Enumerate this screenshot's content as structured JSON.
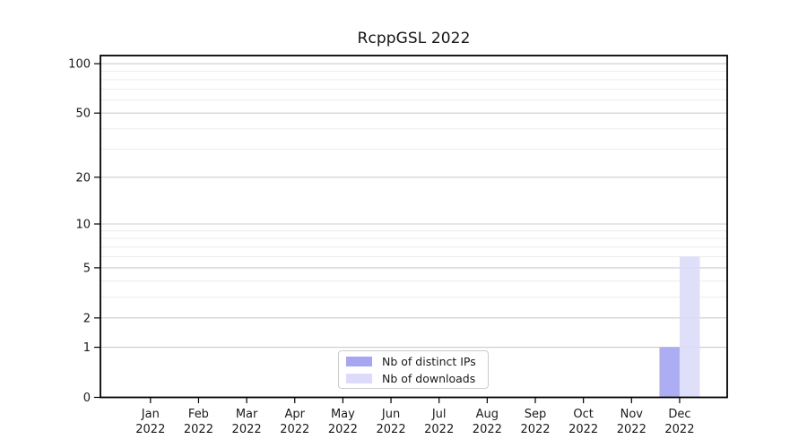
{
  "title": "RcppGSL 2022",
  "chart_data": {
    "type": "bar",
    "title": "RcppGSL 2022",
    "categories": [
      "Jan",
      "Feb",
      "Mar",
      "Apr",
      "May",
      "Jun",
      "Jul",
      "Aug",
      "Sep",
      "Oct",
      "Nov",
      "Dec"
    ],
    "year_label": "2022",
    "series": [
      {
        "name": "Nb of distinct IPs",
        "color": "#a6a6f2",
        "values": [
          0,
          0,
          0,
          0,
          0,
          0,
          0,
          0,
          0,
          0,
          0,
          1
        ]
      },
      {
        "name": "Nb of downloads",
        "color": "#dcdcfa",
        "values": [
          0,
          0,
          0,
          0,
          0,
          0,
          0,
          0,
          0,
          0,
          0,
          6
        ]
      }
    ],
    "y_scale": "log1p",
    "y_ticks": [
      0,
      1,
      2,
      5,
      10,
      20,
      50,
      100
    ],
    "y_minor_ticks": [
      3,
      4,
      6,
      7,
      8,
      9,
      30,
      40,
      60,
      70,
      80,
      90
    ],
    "ylim": [
      0,
      112
    ],
    "grid": "horizontal",
    "legend_position": "lower-center-inside",
    "colors": {
      "major_grid": "#cccccc",
      "minor_grid": "#ececec",
      "axis": "#000000",
      "tick_text": "#191919"
    }
  }
}
